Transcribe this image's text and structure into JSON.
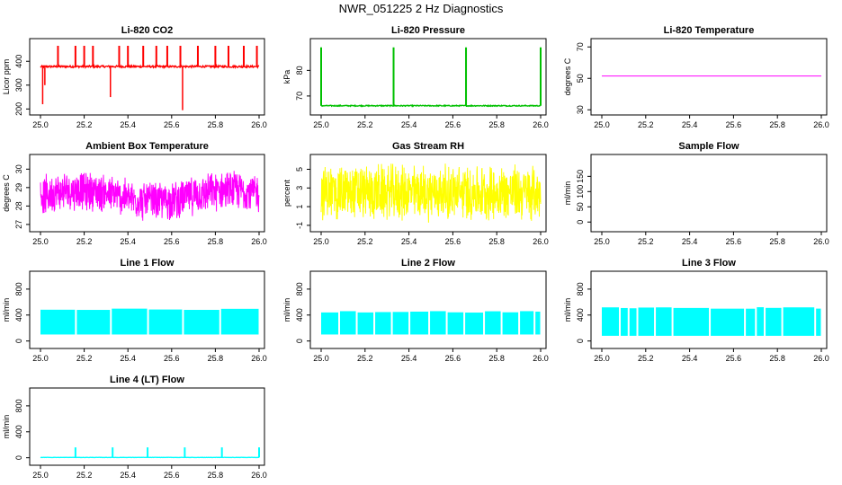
{
  "title": "NWR_051225  2 Hz Diagnostics",
  "chart_data": [
    {
      "type": "line",
      "title": "Li-820 CO2",
      "ylabel": "Licor ppm",
      "color": "#ff0000",
      "xlim": [
        25.0,
        26.0
      ],
      "ylim": [
        190,
        480
      ],
      "yticks": [
        200,
        300,
        400
      ],
      "xticks": [
        25.0,
        25.2,
        25.4,
        25.6,
        25.8,
        26.0
      ],
      "baseline": 378,
      "noise": 4,
      "spikes_x": [
        25.08,
        25.16,
        25.2,
        25.24,
        25.36,
        25.4,
        25.47,
        25.53,
        25.58,
        25.64,
        25.72,
        25.8,
        25.86,
        25.93,
        25.99
      ],
      "spikes_y": 465,
      "dips": [
        [
          25.01,
          220
        ],
        [
          25.32,
          250
        ],
        [
          25.65,
          195
        ],
        [
          25.02,
          300
        ]
      ]
    },
    {
      "type": "line",
      "title": "Li-820 Pressure",
      "ylabel": "kPa",
      "color": "#00c000",
      "xlim": [
        25.0,
        26.0
      ],
      "ylim": [
        64,
        91
      ],
      "yticks": [
        70,
        80
      ],
      "xticks": [
        25.0,
        25.2,
        25.4,
        25.6,
        25.8,
        26.0
      ],
      "baseline": 66.2,
      "noise": 0.2,
      "spikes_x": [
        25.0,
        25.33,
        25.66,
        26.0
      ],
      "spikes_y": 89
    },
    {
      "type": "line",
      "title": "Li-820 Temperature",
      "ylabel": "degrees C",
      "color": "#ff00ff",
      "xlim": [
        25.0,
        26.0
      ],
      "ylim": [
        29,
        73
      ],
      "yticks": [
        30,
        50,
        70
      ],
      "xticks": [
        25.0,
        25.2,
        25.4,
        25.6,
        25.8,
        26.0
      ],
      "baseline": 51.5,
      "noise": 0
    },
    {
      "type": "line",
      "title": "Ambient Box Temperature",
      "ylabel": "degrees C",
      "color": "#ff00ff",
      "xlim": [
        25.0,
        26.0
      ],
      "ylim": [
        26.8,
        30.6
      ],
      "yticks": [
        27,
        28,
        29,
        30
      ],
      "xticks": [
        25.0,
        25.2,
        25.4,
        25.6,
        25.8,
        26.0
      ],
      "band_low": 27.5,
      "band_high": 29.6,
      "band_wave": 0.3
    },
    {
      "type": "line",
      "title": "Gas Stream RH",
      "ylabel": "percent",
      "color": "#ffff00",
      "xlim": [
        25.0,
        26.0
      ],
      "ylim": [
        -1.3,
        6.2
      ],
      "yticks": [
        -1,
        1,
        3,
        5
      ],
      "xticks": [
        25.0,
        25.2,
        25.4,
        25.6,
        25.8,
        26.0
      ],
      "band_low": -0.5,
      "band_high": 5.5,
      "band_wave": 0
    },
    {
      "type": "line",
      "title": "Sample Flow",
      "ylabel": "ml/min",
      "color": "#00ffff",
      "xlim": [
        25.0,
        26.0
      ],
      "ylim": [
        -20,
        210
      ],
      "yticks": [
        0,
        50,
        100,
        150
      ],
      "xticks": [
        25.0,
        25.2,
        25.4,
        25.6,
        25.8,
        26.0
      ],
      "empty": true
    },
    {
      "type": "area",
      "title": "Line 1 Flow",
      "ylabel": "ml/min",
      "color": "#00ffff",
      "xlim": [
        25.0,
        26.0
      ],
      "ylim": [
        -60,
        1020
      ],
      "yticks": [
        0,
        400,
        800
      ],
      "xticks": [
        25.0,
        25.2,
        25.4,
        25.6,
        25.8,
        26.0
      ],
      "fill_low": 100,
      "fill_high": 490,
      "gaps": [
        25.16,
        25.32,
        25.49,
        25.65,
        25.82
      ]
    },
    {
      "type": "area",
      "title": "Line 2 Flow",
      "ylabel": "ml/min",
      "color": "#00ffff",
      "xlim": [
        25.0,
        26.0
      ],
      "ylim": [
        -60,
        1020
      ],
      "yticks": [
        0,
        400,
        800
      ],
      "xticks": [
        25.0,
        25.2,
        25.4,
        25.6,
        25.8,
        26.0
      ],
      "fill_low": 100,
      "fill_high": 450,
      "gaps": [
        25.08,
        25.16,
        25.24,
        25.32,
        25.4,
        25.49,
        25.57,
        25.65,
        25.74,
        25.82,
        25.9,
        25.97
      ]
    },
    {
      "type": "area",
      "title": "Line 3 Flow",
      "ylabel": "ml/min",
      "color": "#00ffff",
      "xlim": [
        25.0,
        26.0
      ],
      "ylim": [
        -60,
        1020
      ],
      "yticks": [
        0,
        400,
        800
      ],
      "xticks": [
        25.0,
        25.2,
        25.4,
        25.6,
        25.8,
        26.0
      ],
      "fill_low": 80,
      "fill_high": 510,
      "gaps": [
        25.08,
        25.12,
        25.16,
        25.24,
        25.32,
        25.49,
        25.65,
        25.7,
        25.74,
        25.82,
        25.97
      ]
    },
    {
      "type": "line",
      "title": "Line 4 (LT) Flow",
      "ylabel": "ml/min",
      "color": "#00ffff",
      "xlim": [
        25.0,
        26.0
      ],
      "ylim": [
        -60,
        1020
      ],
      "yticks": [
        0,
        400,
        800
      ],
      "xticks": [
        25.0,
        25.2,
        25.4,
        25.6,
        25.8,
        26.0
      ],
      "baseline": 5,
      "noise": 2,
      "spikes_x": [
        25.16,
        25.33,
        25.49,
        25.66,
        25.83,
        26.0
      ],
      "spikes_y": 160
    }
  ]
}
